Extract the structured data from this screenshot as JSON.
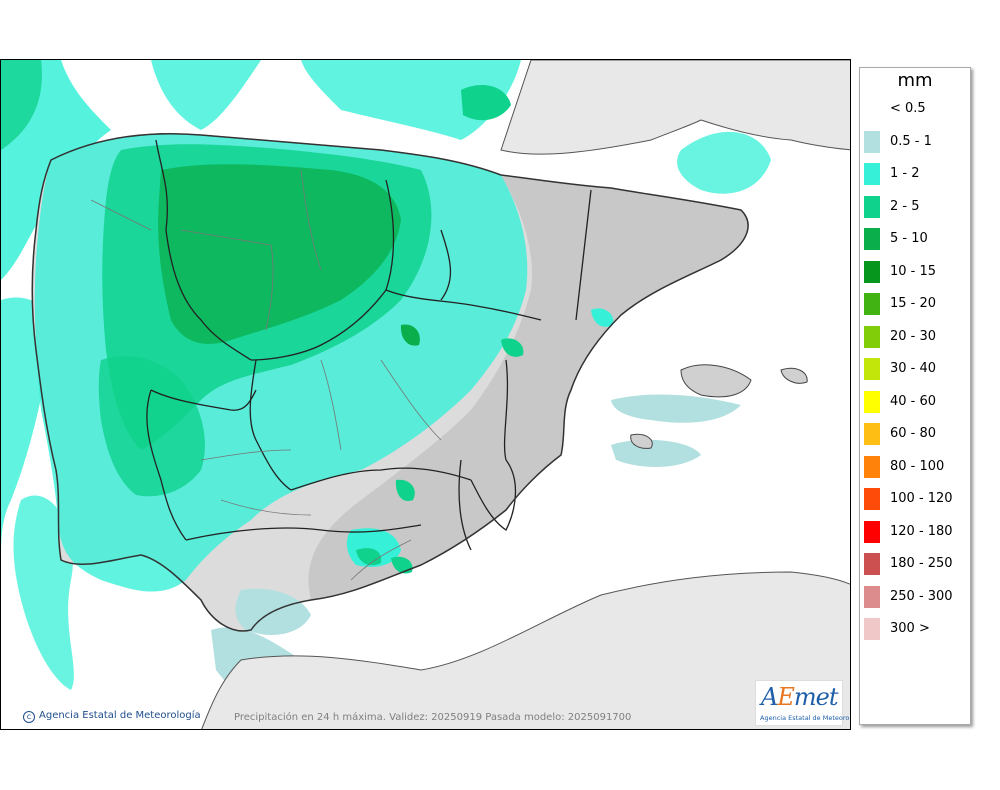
{
  "map": {
    "credit": "Agencia Estatal de Meteorología",
    "caption": "Precipitación en 24 h máxima. Validez: 20250919 Pasada modelo: 2025091700",
    "logo": {
      "word_a": "A",
      "word_e": "E",
      "word_rest": "met",
      "subtitle": "Agencia Estatal de Meteorología"
    }
  },
  "legend": {
    "unit": "mm",
    "classes": [
      {
        "label": "< 0.5",
        "color": "#ffffff"
      },
      {
        "label": "0.5 - 1",
        "color": "#b2e0e0"
      },
      {
        "label": "1 - 2",
        "color": "#37f0d8"
      },
      {
        "label": "2 - 5",
        "color": "#0fd28c"
      },
      {
        "label": "5 - 10",
        "color": "#0aae4b"
      },
      {
        "label": "10 - 15",
        "color": "#06961e"
      },
      {
        "label": "15 - 20",
        "color": "#41b414"
      },
      {
        "label": "20 - 30",
        "color": "#82cd0a"
      },
      {
        "label": "30 - 40",
        "color": "#c3e60a"
      },
      {
        "label": "40 - 60",
        "color": "#ffff00"
      },
      {
        "label": "60 - 80",
        "color": "#ffbe14"
      },
      {
        "label": "80 - 100",
        "color": "#ff820a"
      },
      {
        "label": "100 - 120",
        "color": "#ff4b0a"
      },
      {
        "label": "120 - 180",
        "color": "#ff0000"
      },
      {
        "label": "180 - 250",
        "color": "#cd5050"
      },
      {
        "label": "250 - 300",
        "color": "#dc8c8c"
      },
      {
        "label": "300 >",
        "color": "#f0c8c8"
      }
    ]
  }
}
